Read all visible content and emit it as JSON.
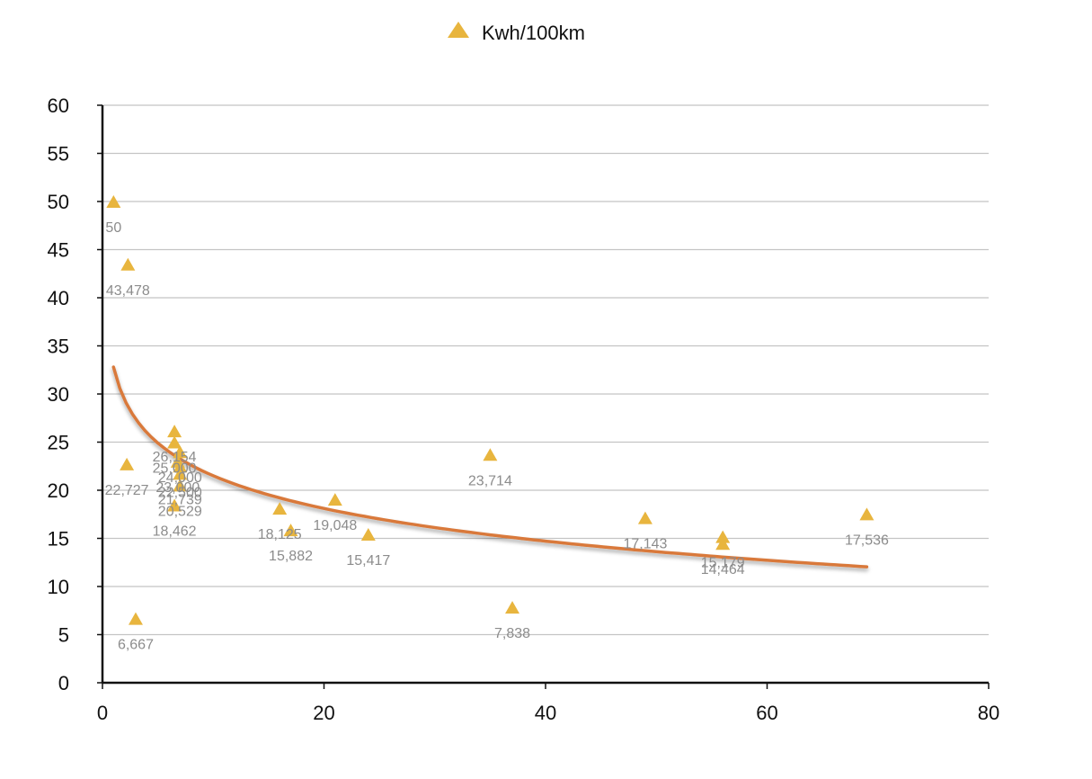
{
  "chart_data": {
    "type": "scatter",
    "title": "",
    "xlabel": "",
    "ylabel": "",
    "xlim": [
      0,
      80
    ],
    "ylim": [
      0,
      60
    ],
    "x_ticks": [
      "0",
      "20",
      "40",
      "60",
      "80"
    ],
    "y_ticks": [
      "0",
      "5",
      "10",
      "15",
      "20",
      "25",
      "30",
      "35",
      "40",
      "45",
      "50",
      "55",
      "60"
    ],
    "grid": "horizontal",
    "legend": {
      "position": "top-center",
      "entries": [
        "Kwh/100km"
      ]
    },
    "series": [
      {
        "name": "Kwh/100km",
        "color": "#E8B53E",
        "marker": "triangle",
        "points": [
          {
            "x": 1.0,
            "y": 50.0,
            "label": "50"
          },
          {
            "x": 2.3,
            "y": 43.478,
            "label": "43,478"
          },
          {
            "x": 2.2,
            "y": 22.727,
            "label": "22,727"
          },
          {
            "x": 3.0,
            "y": 6.667,
            "label": "6,667"
          },
          {
            "x": 6.5,
            "y": 26.154,
            "label": "26,154"
          },
          {
            "x": 6.5,
            "y": 25.0,
            "label": "25,000"
          },
          {
            "x": 7.0,
            "y": 24.0,
            "label": "24,000"
          },
          {
            "x": 6.8,
            "y": 23.0,
            "label": "23,000"
          },
          {
            "x": 7.0,
            "y": 22.5,
            "label": "22,500"
          },
          {
            "x": 7.0,
            "y": 21.739,
            "label": "21,739"
          },
          {
            "x": 7.0,
            "y": 20.529,
            "label": "20,529"
          },
          {
            "x": 6.5,
            "y": 18.462,
            "label": "18,462"
          },
          {
            "x": 16.0,
            "y": 18.125,
            "label": "18,125"
          },
          {
            "x": 17.0,
            "y": 15.882,
            "label": "15,882"
          },
          {
            "x": 21.0,
            "y": 19.048,
            "label": "19,048"
          },
          {
            "x": 24.0,
            "y": 15.417,
            "label": "15,417"
          },
          {
            "x": 35.0,
            "y": 23.714,
            "label": "23,714"
          },
          {
            "x": 37.0,
            "y": 7.838,
            "label": "7,838"
          },
          {
            "x": 49.0,
            "y": 17.143,
            "label": "17,143"
          },
          {
            "x": 56.0,
            "y": 15.179,
            "label": "15,179"
          },
          {
            "x": 56.0,
            "y": 14.464,
            "label": "14,464"
          },
          {
            "x": 69.0,
            "y": 17.536,
            "label": "17,536"
          }
        ]
      }
    ],
    "trendline": {
      "type": "logarithmic",
      "color": "#D9793A",
      "a": 32.79,
      "b": -4.9,
      "x_range": [
        1.0,
        69.0
      ]
    }
  }
}
